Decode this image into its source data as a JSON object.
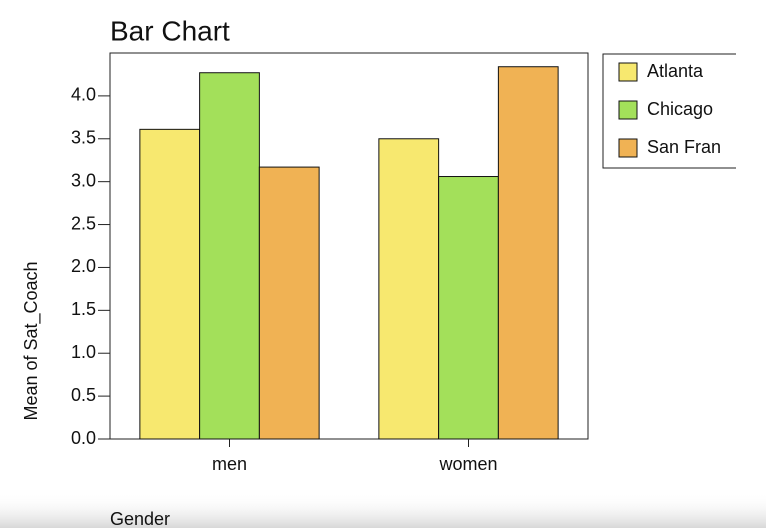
{
  "chart_data": {
    "type": "bar",
    "title": "Bar Chart",
    "x_label": "Gender",
    "y_label": "Mean of Sat_Coach",
    "categories": [
      "men",
      "women"
    ],
    "series": [
      {
        "name": "Atlanta",
        "color": "#f7e86f",
        "values": [
          3.61,
          3.5
        ]
      },
      {
        "name": "Chicago",
        "color": "#a3e05a",
        "values": [
          4.27,
          3.06
        ]
      },
      {
        "name": "San Fran",
        "color": "#f0b254",
        "values": [
          3.17,
          4.34
        ]
      }
    ],
    "ylim": [
      0,
      4.5
    ],
    "yticks": [
      {
        "value": 0,
        "label": "0.0"
      },
      {
        "value": 0.5,
        "label": "0.5"
      },
      {
        "value": 1,
        "label": "1.0"
      },
      {
        "value": 1.5,
        "label": "1.5"
      },
      {
        "value": 2,
        "label": "2.0"
      },
      {
        "value": 2.5,
        "label": "2.5"
      },
      {
        "value": 3,
        "label": "3.0"
      },
      {
        "value": 3.5,
        "label": "3.5"
      },
      {
        "value": 4,
        "label": "4.0"
      }
    ],
    "legend": "right"
  }
}
